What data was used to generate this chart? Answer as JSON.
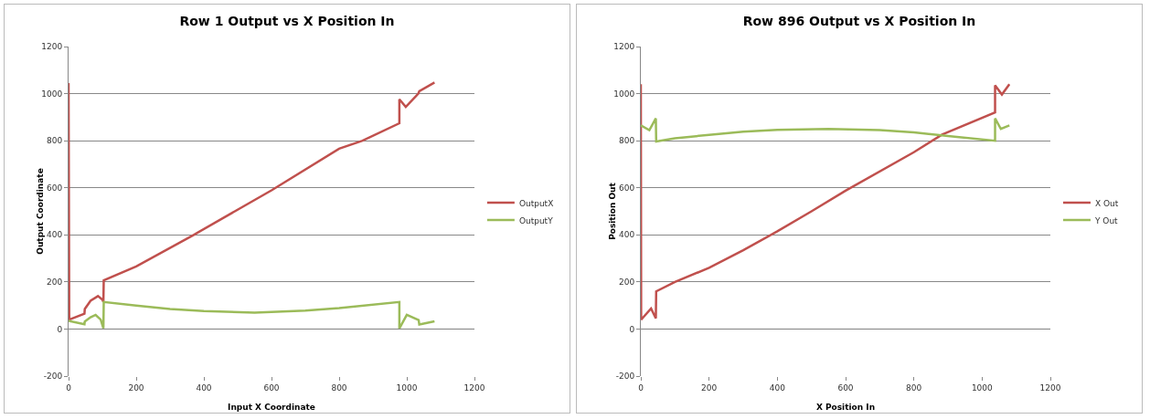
{
  "chart_data": [
    {
      "type": "line",
      "title": "Row 1 Output vs X Position In",
      "xlabel": "Input X Coordinate",
      "ylabel": "Output Coordinate",
      "xlim": [
        0,
        1200
      ],
      "xticks": [
        0,
        200,
        400,
        600,
        800,
        1000,
        1200
      ],
      "ylim": [
        -200,
        1200
      ],
      "yticks": [
        -200,
        0,
        200,
        400,
        600,
        800,
        1000,
        1200
      ],
      "grid": "y",
      "legend": "right",
      "marker": "none",
      "line_style": "solid",
      "series": [
        {
          "name": "OutputX",
          "color": "#c0504d",
          "x": [
            0,
            2,
            47,
            48,
            65,
            87,
            100,
            103,
            104,
            200,
            370,
            600,
            800,
            869,
            978,
            978,
            997,
            1034,
            1037,
            1082
          ],
          "values": [
            1045,
            40,
            65,
            85,
            120,
            140,
            125,
            115,
            207,
            266,
            400,
            589,
            766,
            800,
            874,
            976,
            944,
            1000,
            1010,
            1047
          ]
        },
        {
          "name": "OutputY",
          "color": "#9bbb59",
          "x": [
            0,
            47,
            48,
            65,
            80,
            95,
            103,
            104,
            200,
            300,
            400,
            550,
            700,
            800,
            978,
            978,
            1000,
            1035,
            1037,
            1082
          ],
          "values": [
            35,
            20,
            32,
            50,
            60,
            40,
            3,
            115,
            100,
            85,
            76,
            70,
            78,
            89,
            115,
            2,
            60,
            38,
            19,
            33
          ]
        }
      ]
    },
    {
      "type": "line",
      "title": "Row 896 Output vs X Position In",
      "xlabel": "X Position In",
      "ylabel": "Position Out",
      "xlim": [
        0,
        1200
      ],
      "xticks": [
        0,
        200,
        400,
        600,
        800,
        1000,
        1200
      ],
      "ylim": [
        -200,
        1200
      ],
      "yticks": [
        -200,
        0,
        200,
        400,
        600,
        800,
        1000,
        1200
      ],
      "grid": "y",
      "legend": "right",
      "marker": "none",
      "line_style": "solid",
      "series": [
        {
          "name": "X Out",
          "color": "#c0504d",
          "x": [
            0,
            1,
            30,
            44,
            45,
            100,
            200,
            300,
            400,
            500,
            600,
            800,
            883,
            1038,
            1038,
            1058,
            1080
          ],
          "values": [
            1040,
            40,
            87,
            45,
            160,
            200,
            260,
            335,
            415,
            500,
            588,
            751,
            826,
            920,
            1035,
            996,
            1040
          ]
        },
        {
          "name": "Y Out",
          "color": "#9bbb59",
          "x": [
            0,
            25,
            44,
            45,
            100,
            200,
            300,
            400,
            550,
            700,
            800,
            900,
            1038,
            1038,
            1055,
            1080
          ],
          "values": [
            865,
            845,
            895,
            797,
            810,
            825,
            838,
            846,
            850,
            845,
            835,
            820,
            800,
            895,
            850,
            865
          ]
        }
      ]
    }
  ]
}
